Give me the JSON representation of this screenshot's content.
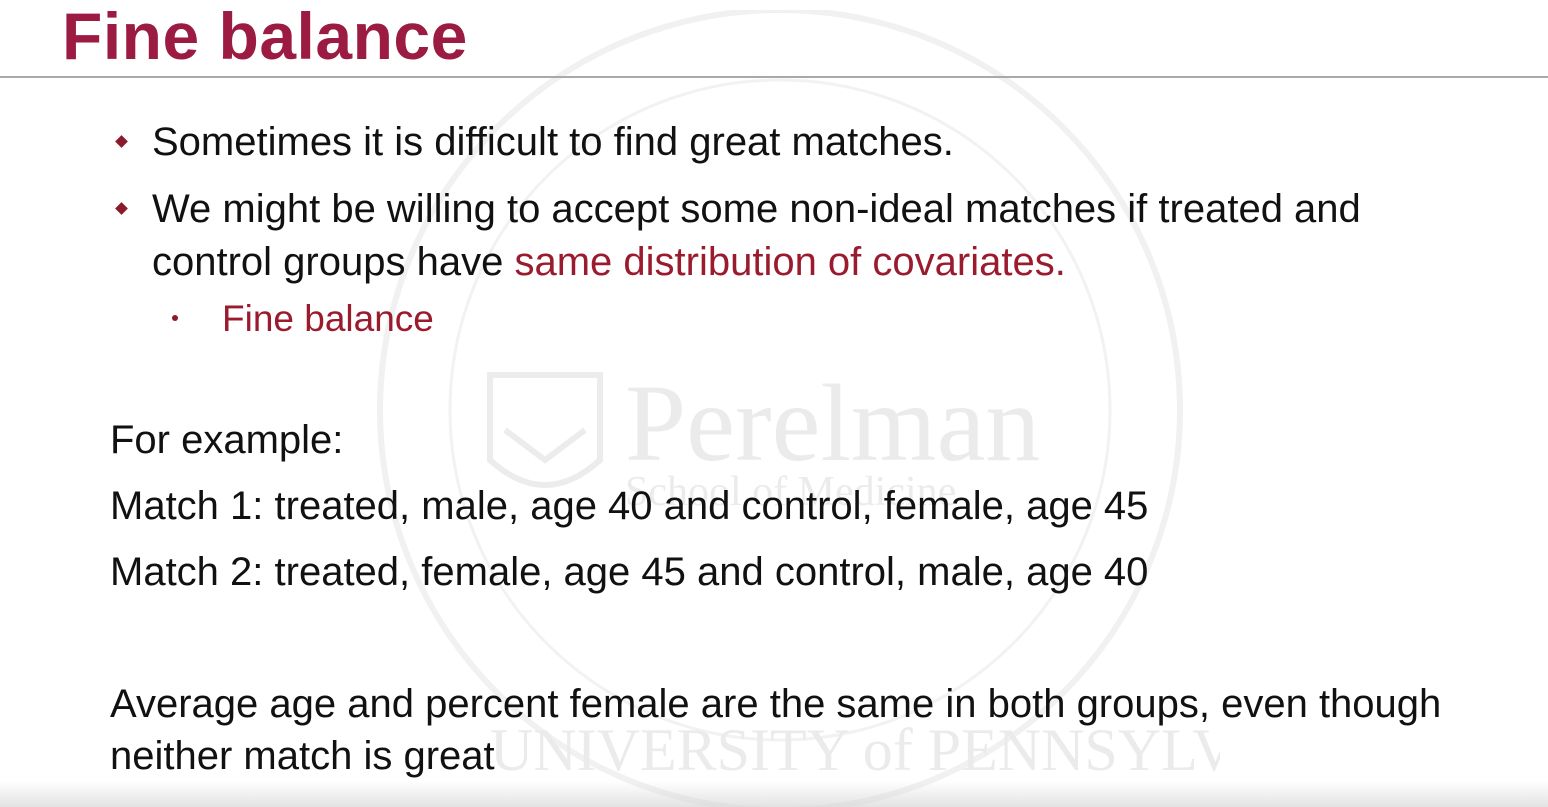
{
  "slide": {
    "title": "Fine balance",
    "bullets": [
      {
        "text_before": "Sometimes it is difficult to find great matches.",
        "text_highlight": ""
      },
      {
        "text_before": "We might be willing to accept some non-ideal matches if treated and control groups have ",
        "text_highlight": "same distribution of covariates."
      }
    ],
    "sub_bullet": "Fine balance",
    "example_label": "For example:",
    "match_1": "Match 1: treated, male, age 40 and control, female, age 45",
    "match_2": "Match 2: treated, female, age 45 and control, male, age 40",
    "conclusion": "Average age and percent female are the same in both groups, even though neither match is great"
  },
  "watermark": {
    "name": "Perelman",
    "subtitle": "School of Medicine",
    "ring_text": "UNIVERSITY of PENNSYLVANIA"
  },
  "colors": {
    "title": "#9b1b43",
    "highlight": "#9b1b2e",
    "body_text": "#111111",
    "rule": "#a9a9a9"
  }
}
